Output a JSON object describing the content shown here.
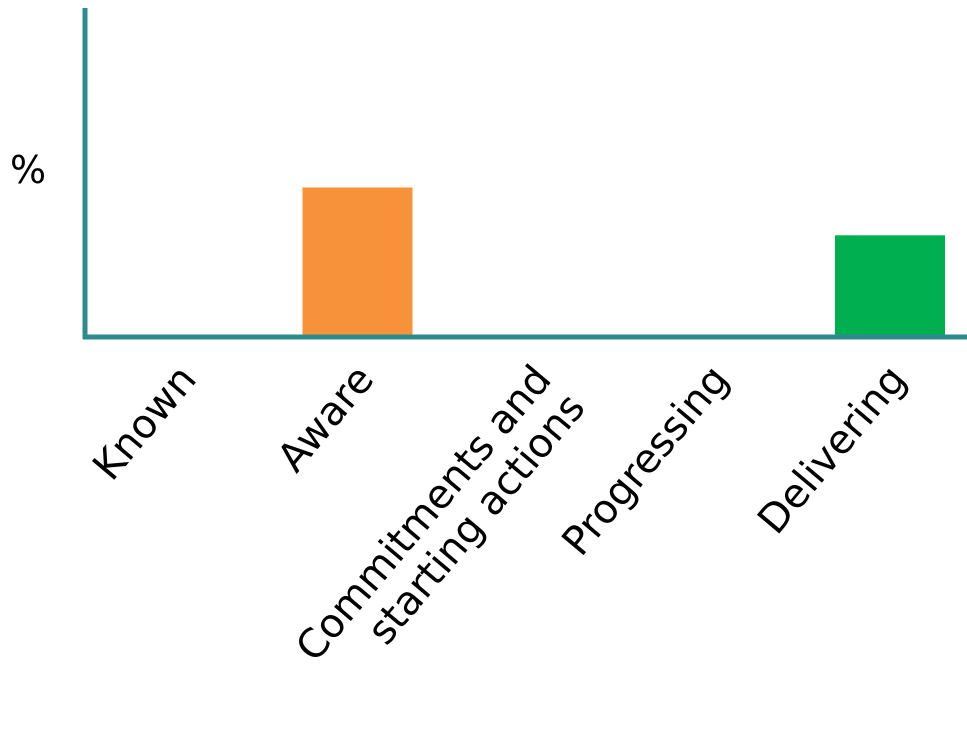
{
  "chart_data": {
    "type": "bar",
    "categories": [
      [
        "Known"
      ],
      [
        "Aware"
      ],
      [
        "Commitments and",
        "starting actions"
      ],
      [
        "Progressing"
      ],
      [
        "Delivering"
      ]
    ],
    "values": [
      0,
      50,
      0,
      0,
      34
    ],
    "bar_colors": [
      "#F7923A",
      "#F7923A",
      "#F7923A",
      "#F7923A",
      "#00AF50"
    ],
    "axis_color": "#2E8B8B",
    "ylabel": "%",
    "xlabel": "",
    "title": "",
    "ylim": [
      0,
      110
    ],
    "grid": false,
    "legend": "none",
    "y_ticks_shown": false
  }
}
